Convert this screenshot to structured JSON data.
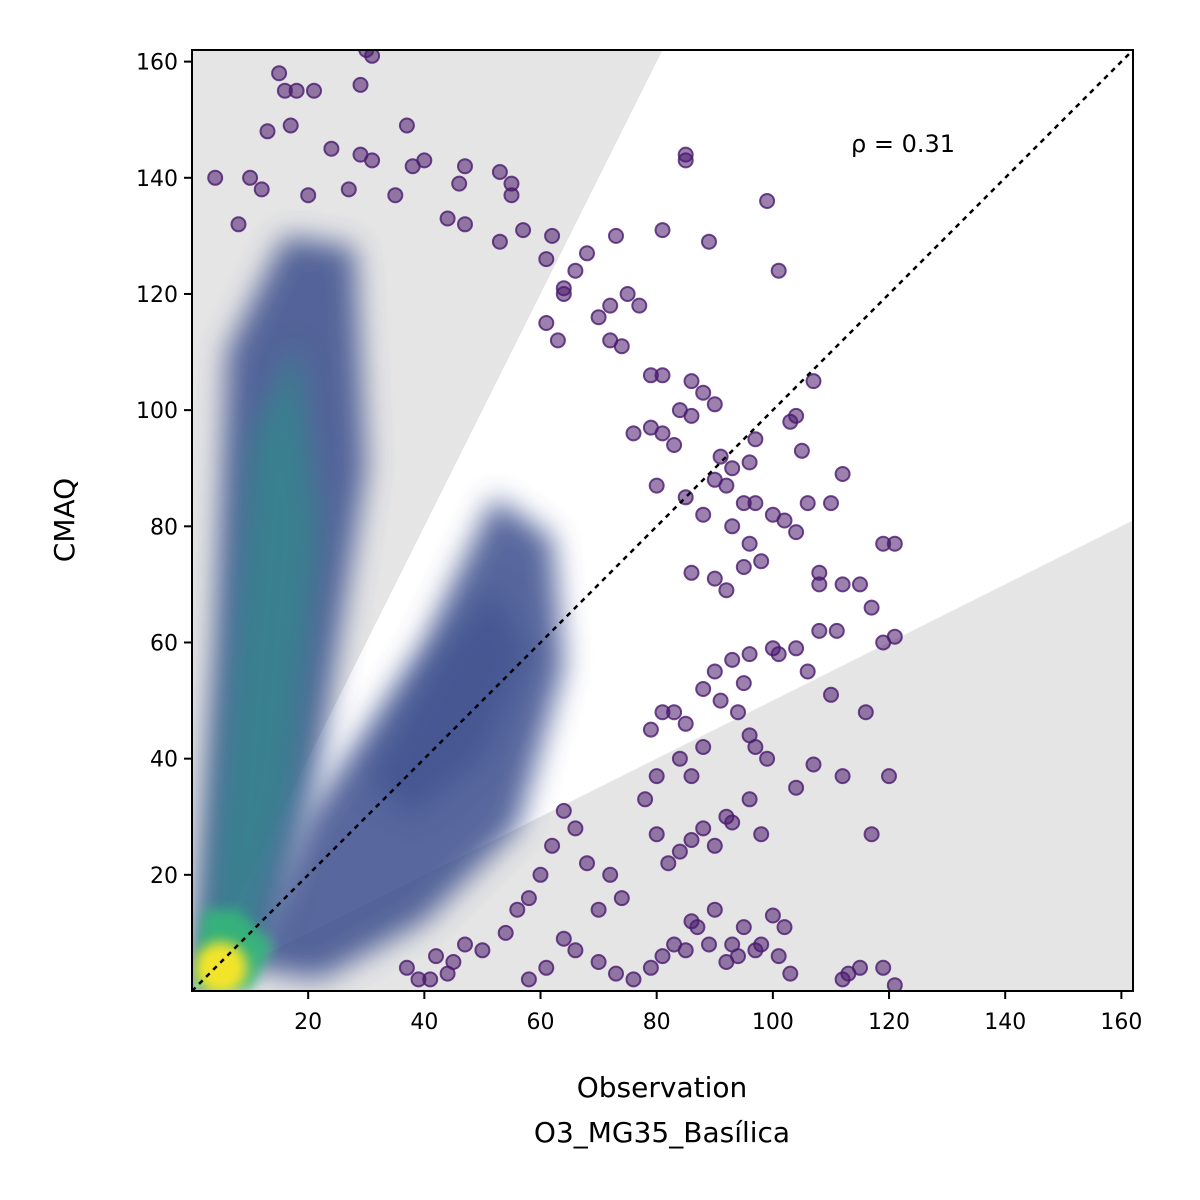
{
  "chart_data": {
    "type": "scatter",
    "title": "",
    "xlabel": "Observation",
    "xlabel_sub": "O3_MG35_Basílica",
    "ylabel": "CMAQ",
    "xlim": [
      0,
      162
    ],
    "ylim": [
      0,
      162
    ],
    "xticks": [
      20,
      40,
      60,
      80,
      100,
      120,
      140,
      160
    ],
    "yticks": [
      20,
      40,
      60,
      80,
      100,
      120,
      140,
      160
    ],
    "annotation": "ρ = 0.31",
    "grid": false,
    "reference_line": "1:1 dashed",
    "shaded_region": "outside factor-of-2 band (y > 2x or y < x/2)",
    "colors": {
      "shade": "#e5e5e5",
      "outlier": "#4a1a6e",
      "density_low": "#3b4d8c",
      "density_mid": "#2f8c8c",
      "density_high": "#fde725",
      "reference_line": "#000000"
    },
    "density_cores": [
      {
        "x": 5,
        "y": 4,
        "density": "highest"
      },
      {
        "x": 12,
        "y": 55,
        "density": "high"
      },
      {
        "x": 45,
        "y": 55,
        "density": "medium"
      }
    ],
    "outliers": [
      [
        30,
        162
      ],
      [
        31,
        161
      ],
      [
        29,
        156
      ],
      [
        15,
        158
      ],
      [
        16,
        155
      ],
      [
        18,
        155
      ],
      [
        21,
        155
      ],
      [
        17,
        149
      ],
      [
        37,
        149
      ],
      [
        13,
        148
      ],
      [
        24,
        145
      ],
      [
        29,
        144
      ],
      [
        31,
        143
      ],
      [
        38,
        142
      ],
      [
        40,
        143
      ],
      [
        47,
        142
      ],
      [
        53,
        141
      ],
      [
        55,
        139
      ],
      [
        46,
        139
      ],
      [
        4,
        140
      ],
      [
        10,
        140
      ],
      [
        12,
        138
      ],
      [
        35,
        137
      ],
      [
        55,
        137
      ],
      [
        20,
        137
      ],
      [
        27,
        138
      ],
      [
        44,
        133
      ],
      [
        47,
        132
      ],
      [
        57,
        131
      ],
      [
        53,
        129
      ],
      [
        8,
        132
      ],
      [
        61,
        126
      ],
      [
        62,
        130
      ],
      [
        73,
        130
      ],
      [
        68,
        127
      ],
      [
        66,
        124
      ],
      [
        64,
        121
      ],
      [
        85,
        143
      ],
      [
        85,
        144
      ],
      [
        81,
        131
      ],
      [
        89,
        129
      ],
      [
        99,
        136
      ],
      [
        101,
        124
      ],
      [
        64,
        120
      ],
      [
        72,
        118
      ],
      [
        70,
        116
      ],
      [
        75,
        120
      ],
      [
        77,
        118
      ],
      [
        61,
        115
      ],
      [
        63,
        112
      ],
      [
        72,
        112
      ],
      [
        74,
        111
      ],
      [
        79,
        106
      ],
      [
        81,
        106
      ],
      [
        86,
        105
      ],
      [
        88,
        103
      ],
      [
        90,
        101
      ],
      [
        84,
        100
      ],
      [
        86,
        99
      ],
      [
        79,
        97
      ],
      [
        81,
        96
      ],
      [
        76,
        96
      ],
      [
        83,
        94
      ],
      [
        91,
        92
      ],
      [
        93,
        90
      ],
      [
        96,
        91
      ],
      [
        97,
        95
      ],
      [
        103,
        98
      ],
      [
        105,
        93
      ],
      [
        104,
        99
      ],
      [
        107,
        105
      ],
      [
        90,
        88
      ],
      [
        92,
        87
      ],
      [
        95,
        84
      ],
      [
        97,
        84
      ],
      [
        100,
        82
      ],
      [
        102,
        81
      ],
      [
        106,
        84
      ],
      [
        110,
        84
      ],
      [
        112,
        89
      ],
      [
        80,
        87
      ],
      [
        85,
        85
      ],
      [
        88,
        82
      ],
      [
        93,
        80
      ],
      [
        96,
        77
      ],
      [
        98,
        74
      ],
      [
        95,
        73
      ],
      [
        90,
        71
      ],
      [
        92,
        69
      ],
      [
        86,
        72
      ],
      [
        104,
        79
      ],
      [
        108,
        72
      ],
      [
        108,
        70
      ],
      [
        112,
        70
      ],
      [
        115,
        70
      ],
      [
        117,
        66
      ],
      [
        119,
        77
      ],
      [
        121,
        77
      ],
      [
        111,
        62
      ],
      [
        108,
        62
      ],
      [
        119,
        60
      ],
      [
        121,
        61
      ],
      [
        104,
        59
      ],
      [
        100,
        59
      ],
      [
        101,
        58
      ],
      [
        106,
        55
      ],
      [
        96,
        58
      ],
      [
        93,
        57
      ],
      [
        95,
        53
      ],
      [
        90,
        55
      ],
      [
        88,
        52
      ],
      [
        91,
        50
      ],
      [
        94,
        48
      ],
      [
        96,
        44
      ],
      [
        97,
        42
      ],
      [
        99,
        40
      ],
      [
        110,
        51
      ],
      [
        116,
        48
      ],
      [
        112,
        37
      ],
      [
        120,
        37
      ],
      [
        117,
        27
      ],
      [
        107,
        39
      ],
      [
        104,
        35
      ],
      [
        96,
        33
      ],
      [
        98,
        27
      ],
      [
        92,
        30
      ],
      [
        93,
        29
      ],
      [
        90,
        25
      ],
      [
        88,
        28
      ],
      [
        86,
        26
      ],
      [
        84,
        24
      ],
      [
        82,
        22
      ],
      [
        80,
        27
      ],
      [
        78,
        33
      ],
      [
        80,
        37
      ],
      [
        86,
        37
      ],
      [
        84,
        40
      ],
      [
        88,
        42
      ],
      [
        85,
        46
      ],
      [
        83,
        48
      ],
      [
        81,
        48
      ],
      [
        79,
        45
      ],
      [
        100,
        13
      ],
      [
        102,
        11
      ],
      [
        98,
        8
      ],
      [
        95,
        11
      ],
      [
        90,
        14
      ],
      [
        86,
        12
      ],
      [
        83,
        8
      ],
      [
        81,
        6
      ],
      [
        79,
        4
      ],
      [
        76,
        2
      ],
      [
        73,
        3
      ],
      [
        70,
        5
      ],
      [
        101,
        6
      ],
      [
        103,
        3
      ],
      [
        112,
        2
      ],
      [
        113,
        3
      ],
      [
        115,
        4
      ],
      [
        119,
        4
      ],
      [
        121,
        1
      ],
      [
        92,
        5
      ],
      [
        93,
        8
      ],
      [
        94,
        6
      ],
      [
        97,
        7
      ],
      [
        89,
        8
      ],
      [
        87,
        11
      ],
      [
        85,
        7
      ],
      [
        70,
        14
      ],
      [
        72,
        20
      ],
      [
        74,
        16
      ],
      [
        68,
        22
      ],
      [
        66,
        28
      ],
      [
        64,
        31
      ],
      [
        62,
        25
      ],
      [
        60,
        20
      ],
      [
        58,
        16
      ],
      [
        56,
        14
      ],
      [
        54,
        10
      ],
      [
        50,
        7
      ],
      [
        47,
        8
      ],
      [
        45,
        5
      ],
      [
        44,
        3
      ],
      [
        41,
        2
      ],
      [
        37,
        4
      ],
      [
        39,
        2
      ],
      [
        42,
        6
      ],
      [
        64,
        9
      ],
      [
        66,
        7
      ],
      [
        61,
        4
      ],
      [
        58,
        2
      ]
    ]
  }
}
